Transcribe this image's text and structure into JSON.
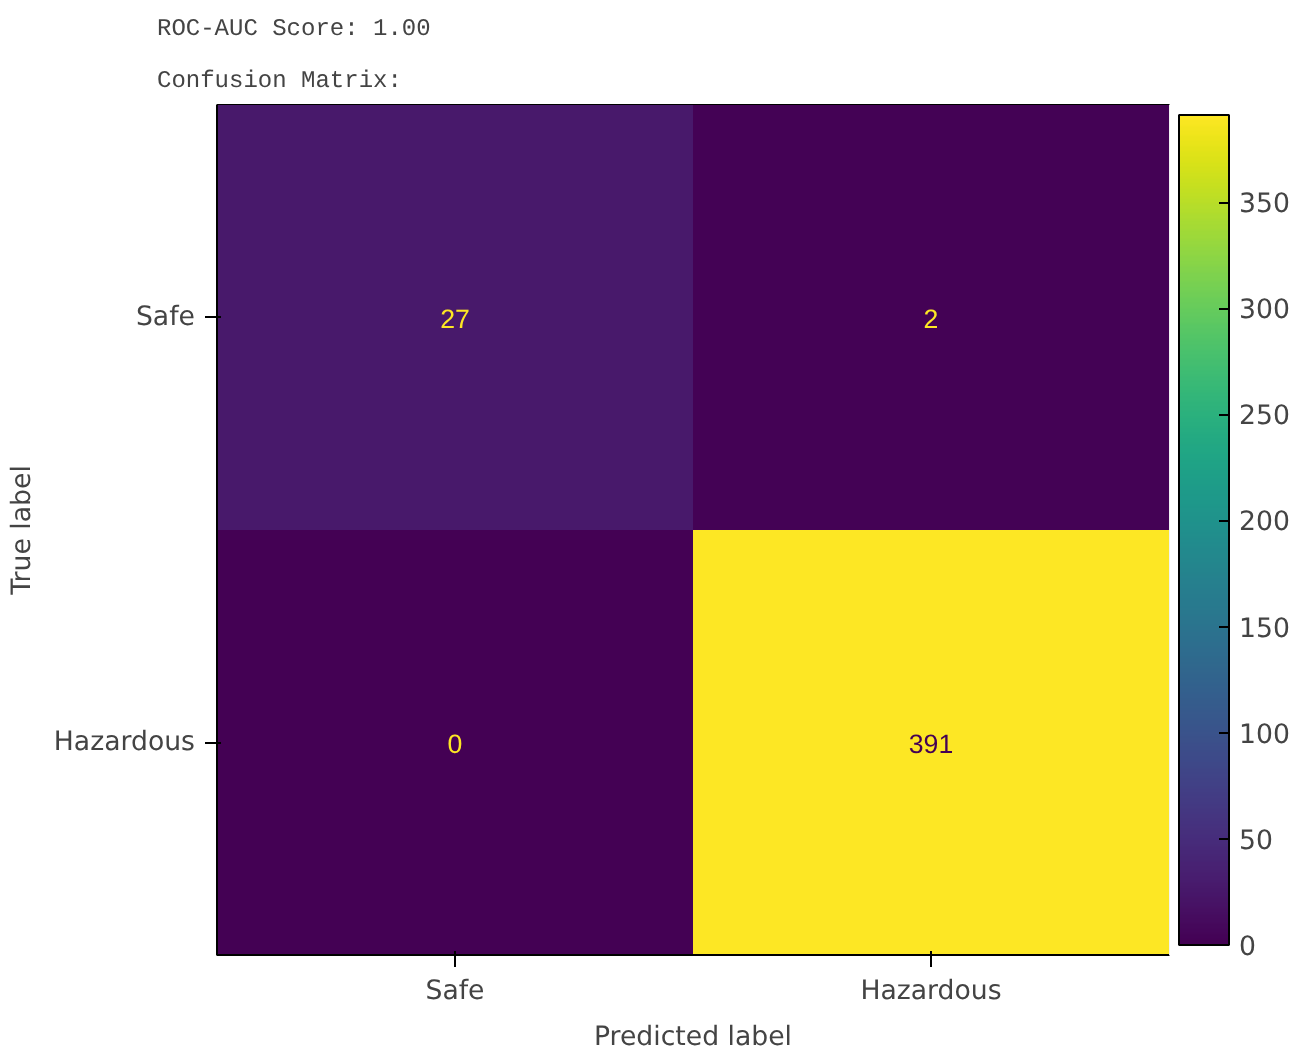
{
  "chart_data": {
    "type": "heatmap",
    "annotations": [
      "ROC-AUC Score: 1.00",
      "Confusion Matrix:"
    ],
    "xlabel": "Predicted label",
    "ylabel": "True label",
    "categories": [
      "Safe",
      "Hazardous"
    ],
    "y_categories": [
      "Safe",
      "Hazardous"
    ],
    "cells": [
      [
        27,
        2
      ],
      [
        0,
        391
      ]
    ],
    "clim": [
      0,
      391
    ],
    "cticks": [
      0,
      50,
      100,
      150,
      200,
      250,
      300,
      350
    ],
    "data_labels": true
  }
}
